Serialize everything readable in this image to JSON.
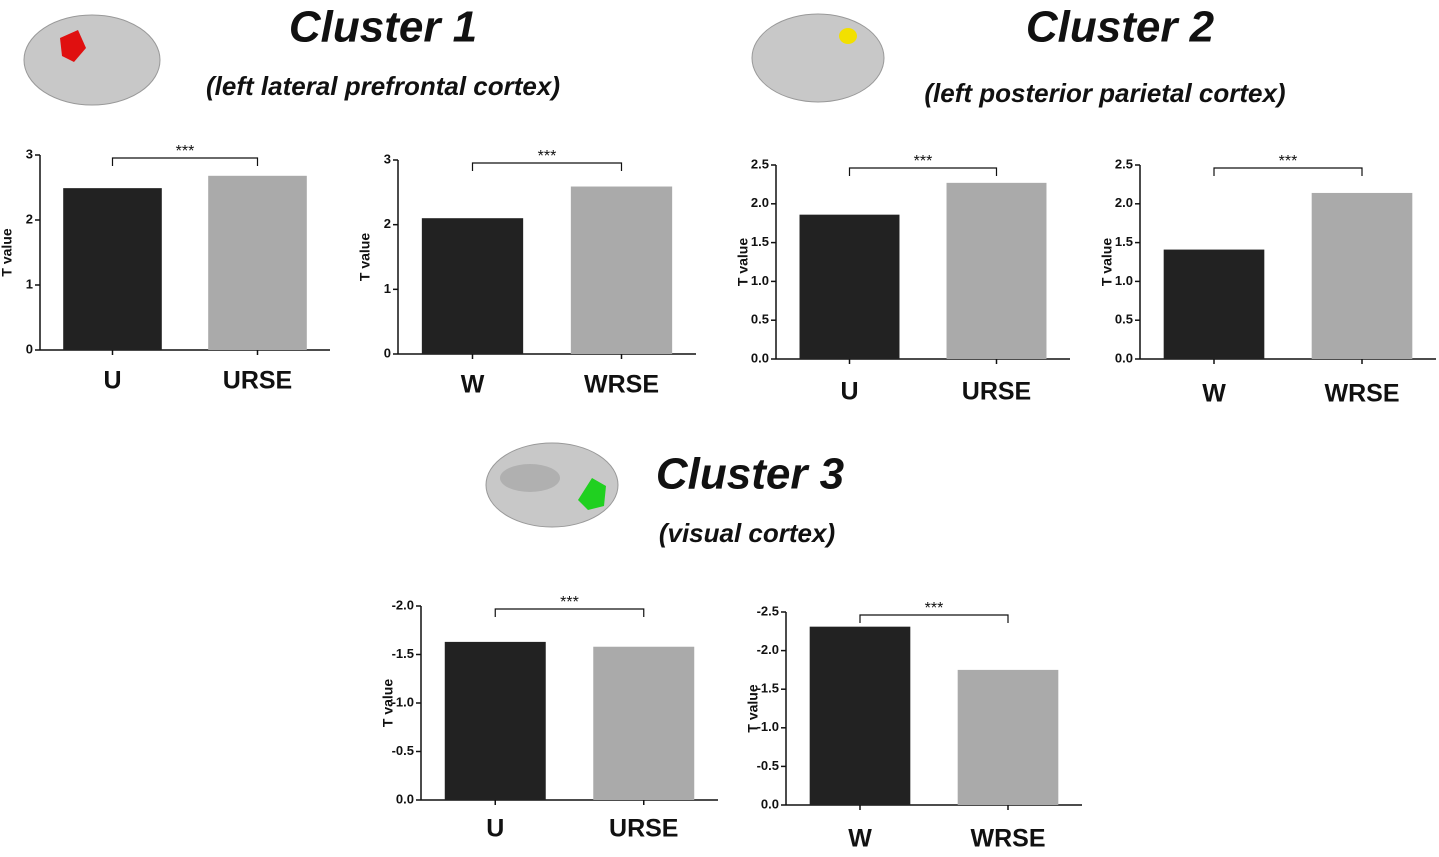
{
  "clusters": [
    {
      "title": "Cluster 1",
      "subtitle": "(left lateral prefrontal cortex)"
    },
    {
      "title": "Cluster 2",
      "subtitle": "(left posterior parietal cortex)"
    },
    {
      "title": "Cluster 3",
      "subtitle": "(visual cortex)"
    }
  ],
  "chart_data": [
    {
      "type": "bar",
      "ylabel": "T value",
      "annotation": "***",
      "categories": [
        "U",
        "URSE"
      ],
      "values": [
        2.49,
        2.68
      ],
      "colors": [
        "#222222",
        "#aaaaaa"
      ],
      "ylim": [
        0,
        3
      ],
      "yticks": [
        0,
        1,
        2,
        3
      ]
    },
    {
      "type": "bar",
      "ylabel": "T value",
      "annotation": "***",
      "categories": [
        "W",
        "WRSE"
      ],
      "values": [
        2.1,
        2.59
      ],
      "colors": [
        "#222222",
        "#aaaaaa"
      ],
      "ylim": [
        0,
        3
      ],
      "yticks": [
        0,
        1,
        2,
        3
      ]
    },
    {
      "type": "bar",
      "ylabel": "T value",
      "annotation": "***",
      "categories": [
        "U",
        "URSE"
      ],
      "values": [
        1.86,
        2.27
      ],
      "colors": [
        "#222222",
        "#aaaaaa"
      ],
      "ylim": [
        0,
        2.5
      ],
      "yticks": [
        {
          "value": 0,
          "label": "0.0"
        },
        {
          "value": 0.5,
          "label": "0.5"
        },
        {
          "value": 1,
          "label": "1.0"
        },
        {
          "value": 1.5,
          "label": "1.5"
        },
        {
          "value": 2,
          "label": "2.0"
        },
        {
          "value": 2.5,
          "label": "2.5"
        }
      ]
    },
    {
      "type": "bar",
      "ylabel": "T value",
      "annotation": "***",
      "categories": [
        "W",
        "WRSE"
      ],
      "values": [
        1.41,
        2.14
      ],
      "colors": [
        "#222222",
        "#aaaaaa"
      ],
      "ylim": [
        0,
        2.5
      ],
      "yticks": [
        {
          "value": 0,
          "label": "0.0"
        },
        {
          "value": 0.5,
          "label": "0.5"
        },
        {
          "value": 1,
          "label": "1.0"
        },
        {
          "value": 1.5,
          "label": "1.5"
        },
        {
          "value": 2,
          "label": "2.0"
        },
        {
          "value": 2.5,
          "label": "2.5"
        }
      ]
    },
    {
      "type": "bar",
      "ylabel": "T value",
      "annotation": "***",
      "categories": [
        "U",
        "URSE"
      ],
      "values": [
        -1.63,
        -1.58
      ],
      "colors": [
        "#222222",
        "#aaaaaa"
      ],
      "ylim": [
        0,
        -2
      ],
      "yticks": [
        {
          "value": 0,
          "label": "0.0"
        },
        {
          "value": -0.5,
          "label": "-0.5"
        },
        {
          "value": -1,
          "label": "-1.0"
        },
        {
          "value": -1.5,
          "label": "-1.5"
        },
        {
          "value": -2,
          "label": "-2.0"
        }
      ]
    },
    {
      "type": "bar",
      "ylabel": "T value",
      "annotation": "***",
      "categories": [
        "W",
        "WRSE"
      ],
      "values": [
        -2.31,
        -1.75
      ],
      "colors": [
        "#222222",
        "#aaaaaa"
      ],
      "ylim": [
        0,
        -2.5
      ],
      "yticks": [
        {
          "value": 0,
          "label": "0.0"
        },
        {
          "value": -0.5,
          "label": "-0.5"
        },
        {
          "value": -1,
          "label": "-1.0"
        },
        {
          "value": -1.5,
          "label": "-1.5"
        },
        {
          "value": -2,
          "label": "-2.0"
        },
        {
          "value": -2.5,
          "label": "-2.5"
        }
      ]
    }
  ]
}
